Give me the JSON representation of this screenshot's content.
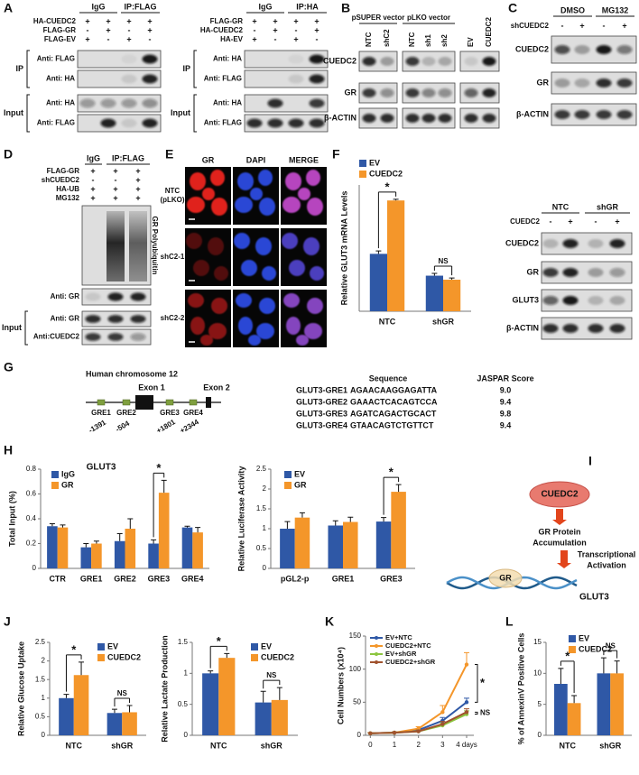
{
  "panel_labels": [
    "A",
    "B",
    "C",
    "D",
    "E",
    "F",
    "G",
    "H",
    "I",
    "J",
    "K",
    "L"
  ],
  "panel_a": {
    "left": {
      "groups": [
        "IgG",
        "IP:FLAG"
      ],
      "conditions": [
        {
          "label": "HA-CUEDC2",
          "signs": [
            "+",
            "+",
            "+",
            "+"
          ]
        },
        {
          "label": "FLAG-GR",
          "signs": [
            "-",
            "+",
            "-",
            "+"
          ]
        },
        {
          "label": "FLAG-EV",
          "signs": [
            "+",
            "-",
            "+",
            "-"
          ]
        }
      ],
      "ip_label": "IP",
      "ip_blots": [
        "Anti: FLAG",
        "Anti: HA"
      ],
      "input_label": "Input",
      "input_blots": [
        "Anti: HA",
        "Anti: FLAG"
      ]
    },
    "right": {
      "groups": [
        "IgG",
        "IP:HA"
      ],
      "conditions": [
        {
          "label": "FLAG-GR",
          "signs": [
            "+",
            "+",
            "+",
            "+"
          ]
        },
        {
          "label": "HA-CUEDC2",
          "signs": [
            "-",
            "+",
            "-",
            "+"
          ]
        },
        {
          "label": "HA-EV",
          "signs": [
            "+",
            "-",
            "+",
            "-"
          ]
        }
      ],
      "ip_label": "IP",
      "ip_blots": [
        "Anti: HA",
        "Anti: FLAG"
      ],
      "input_label": "Input",
      "input_blots": [
        "Anti: HA",
        "Anti: FLAG"
      ]
    }
  },
  "panel_b": {
    "groups": [
      "pSUPER vector",
      "pLKO vector"
    ],
    "lanes": [
      "NTC",
      "shC2",
      "NTC",
      "sh1",
      "sh2",
      "EV",
      "CUEDC2"
    ],
    "blots": [
      "CUEDC2",
      "GR",
      "β-ACTIN"
    ]
  },
  "panel_c": {
    "groups": [
      "DMSO",
      "MG132"
    ],
    "conditions": [
      {
        "label": "shCUEDC2",
        "signs": [
          "-",
          "+",
          "-",
          "+"
        ]
      }
    ],
    "blots": [
      "CUEDC2",
      "GR",
      "β-ACTIN"
    ]
  },
  "panel_d": {
    "groups": [
      "IgG",
      "IP:FLAG"
    ],
    "conditions": [
      {
        "label": "FLAG-GR",
        "signs": [
          "+",
          "+",
          "+"
        ]
      },
      {
        "label": "shCUEDC2",
        "signs": [
          "-",
          "-",
          "+"
        ]
      },
      {
        "label": "HA-UB",
        "signs": [
          "+",
          "+",
          "+"
        ]
      },
      {
        "label": "MG132",
        "signs": [
          "+",
          "+",
          "+"
        ]
      }
    ],
    "side_label": "GR Polyubiquitin",
    "ip_blots": [
      "Anti: GR"
    ],
    "input_label": "Input",
    "input_blots": [
      "Anti: GR",
      "Anti:CUEDC2"
    ]
  },
  "panel_e": {
    "columns": [
      "GR",
      "DAPI",
      "MERGE"
    ],
    "rows": [
      [
        "NTC",
        "(pLKO)"
      ],
      [
        "shC2-1"
      ],
      [
        "shC2-2"
      ]
    ]
  },
  "panel_f_blot": {
    "groups": [
      "NTC",
      "shGR"
    ],
    "conditions": [
      {
        "label": "CUEDC2",
        "signs": [
          "-",
          "+",
          "-",
          "+"
        ]
      }
    ],
    "blots": [
      "CUEDC2",
      "GR",
      "GLUT3",
      "β-ACTIN"
    ]
  },
  "panel_g": {
    "title": "Human chromosome 12",
    "exons": [
      "Exon 1",
      "Exon 2"
    ],
    "elements": [
      "GRE1",
      "GRE2",
      "GRE3",
      "GRE4"
    ],
    "positions": [
      "-1391",
      "-504",
      "+1801",
      "+2344"
    ],
    "table": {
      "header": [
        "Sequence",
        "JASPAR Score"
      ],
      "rows": [
        [
          "GLUT3-GRE1",
          "AGAACAAGGAGATTA",
          "9.0"
        ],
        [
          "GLUT3-GRE2",
          "GAAACTCACAGTCCA",
          "9.4"
        ],
        [
          "GLUT3-GRE3",
          "AGATCAGACTGCACT",
          "9.8"
        ],
        [
          "GLUT3-GRE4",
          "GTAACAGTCTGTTCT",
          "9.4"
        ]
      ]
    }
  },
  "panel_i": {
    "regulator": "CUEDC2",
    "step1": [
      "GR Protein",
      "Accumulation"
    ],
    "step2": [
      "Transcriptional",
      "Activation"
    ],
    "factor": "GR",
    "target": "GLUT3"
  },
  "chart_data": [
    {
      "type": "bar",
      "y_label": "Relative GLUT3 mRNA Levels",
      "categories": [
        "NTC",
        "shGR"
      ],
      "series": [
        {
          "name": "EV",
          "color": "#2f58a6",
          "values": [
            1.0,
            0.62
          ],
          "errors": [
            0.05,
            0.04
          ]
        },
        {
          "name": "CUEDC2",
          "color": "#f4962a",
          "values": [
            1.93,
            0.55
          ],
          "errors": [
            0.02,
            0.03
          ]
        }
      ],
      "ylim": [
        0,
        2.2
      ],
      "annotations": [
        "*",
        "NS"
      ],
      "legend": "top"
    },
    {
      "type": "bar",
      "title": "GLUT3",
      "y_label": "Total Input (%)",
      "categories": [
        "CTR",
        "GRE1",
        "GRE2",
        "GRE3",
        "GRE4"
      ],
      "series": [
        {
          "name": "IgG",
          "color": "#2f58a6",
          "values": [
            0.34,
            0.17,
            0.22,
            0.2,
            0.33
          ],
          "errors": [
            0.02,
            0.03,
            0.06,
            0.03,
            0.01
          ]
        },
        {
          "name": "GR",
          "color": "#f4962a",
          "values": [
            0.33,
            0.2,
            0.32,
            0.61,
            0.29
          ],
          "errors": [
            0.02,
            0.02,
            0.08,
            0.1,
            0.04
          ]
        }
      ],
      "ylim": [
        0,
        0.8
      ],
      "yticks": [
        0,
        0.2,
        0.4,
        0.6,
        0.8
      ],
      "annotations": [
        "*"
      ],
      "legend": "upper left"
    },
    {
      "type": "bar",
      "y_label": "Relative Luciferase Activity",
      "categories": [
        "pGL2-p",
        "GRE1",
        "GRE3"
      ],
      "series": [
        {
          "name": "EV",
          "color": "#2f58a6",
          "values": [
            1.0,
            1.08,
            1.18
          ],
          "errors": [
            0.18,
            0.12,
            0.1
          ]
        },
        {
          "name": "GR",
          "color": "#f4962a",
          "values": [
            1.28,
            1.17,
            1.93
          ],
          "errors": [
            0.12,
            0.12,
            0.18
          ]
        }
      ],
      "ylim": [
        0,
        2.5
      ],
      "yticks": [
        0,
        0.5,
        1,
        1.5,
        2,
        2.5
      ],
      "annotations": [
        "*"
      ],
      "legend": "upper left"
    },
    {
      "type": "bar",
      "y_label": "Relative Glucose Uptake",
      "categories": [
        "NTC",
        "shGR"
      ],
      "series": [
        {
          "name": "EV",
          "color": "#2f58a6",
          "values": [
            1.0,
            0.6
          ],
          "errors": [
            0.1,
            0.1
          ]
        },
        {
          "name": "CUEDC2",
          "color": "#f4962a",
          "values": [
            1.62,
            0.62
          ],
          "errors": [
            0.35,
            0.18
          ]
        }
      ],
      "ylim": [
        0,
        2.5
      ],
      "yticks": [
        0,
        0.5,
        1,
        1.5,
        2,
        2.5
      ],
      "annotations": [
        "*",
        "NS"
      ],
      "legend": "upper right"
    },
    {
      "type": "bar",
      "y_label": "Relative Lactate Production",
      "categories": [
        "NTC",
        "shGR"
      ],
      "series": [
        {
          "name": "EV",
          "color": "#2f58a6",
          "values": [
            1.0,
            0.53
          ],
          "errors": [
            0.04,
            0.18
          ]
        },
        {
          "name": "CUEDC2",
          "color": "#f4962a",
          "values": [
            1.25,
            0.57
          ],
          "errors": [
            0.07,
            0.2
          ]
        }
      ],
      "ylim": [
        0,
        1.5
      ],
      "yticks": [
        0,
        0.5,
        1,
        1.5
      ],
      "annotations": [
        "*",
        "NS"
      ],
      "legend": "upper right"
    },
    {
      "type": "line",
      "y_label": "Cell Numbers (x10⁴)",
      "x": [
        0,
        1,
        2,
        3,
        4
      ],
      "series": [
        {
          "name": "EV+NTC",
          "color": "#2f58a6",
          "values": [
            3,
            4,
            8,
            22,
            50
          ],
          "errors": [
            1,
            1,
            2,
            5,
            6
          ]
        },
        {
          "name": "CUEDC2+NTC",
          "color": "#f4962a",
          "values": [
            3,
            4,
            10,
            35,
            107
          ],
          "errors": [
            1,
            1,
            3,
            10,
            18
          ]
        },
        {
          "name": "EV+shGR",
          "color": "#8cc63f",
          "values": [
            3,
            4,
            6,
            15,
            32
          ],
          "errors": [
            1,
            1,
            2,
            4,
            5
          ]
        },
        {
          "name": "CUEDC2+shGR",
          "color": "#a0522d",
          "values": [
            3,
            4,
            6,
            17,
            35
          ],
          "errors": [
            1,
            1,
            2,
            4,
            5
          ]
        }
      ],
      "xlim": [
        -0.2,
        4.3
      ],
      "xticks": [
        0,
        1,
        2,
        3,
        {
          "value": 4,
          "label": "4 days"
        }
      ],
      "ylim": [
        0,
        150
      ],
      "yticks": [
        0,
        50,
        100,
        150
      ],
      "annotations": [
        "*",
        "NS"
      ],
      "legend": "upper left"
    },
    {
      "type": "bar",
      "y_label": "% of AnnexinV Positive Cells",
      "categories": [
        "NTC",
        "shGR"
      ],
      "series": [
        {
          "name": "EV",
          "color": "#2f58a6",
          "values": [
            8.3,
            10.0
          ],
          "errors": [
            2.5,
            2.5
          ]
        },
        {
          "name": "CUEDC2",
          "color": "#f4962a",
          "values": [
            5.2,
            10.0
          ],
          "errors": [
            1.2,
            2.0
          ]
        }
      ],
      "ylim": [
        0,
        15
      ],
      "yticks": [
        0,
        5,
        10,
        15
      ],
      "annotations": [
        "*",
        "NS"
      ],
      "legend": "upper left"
    }
  ]
}
